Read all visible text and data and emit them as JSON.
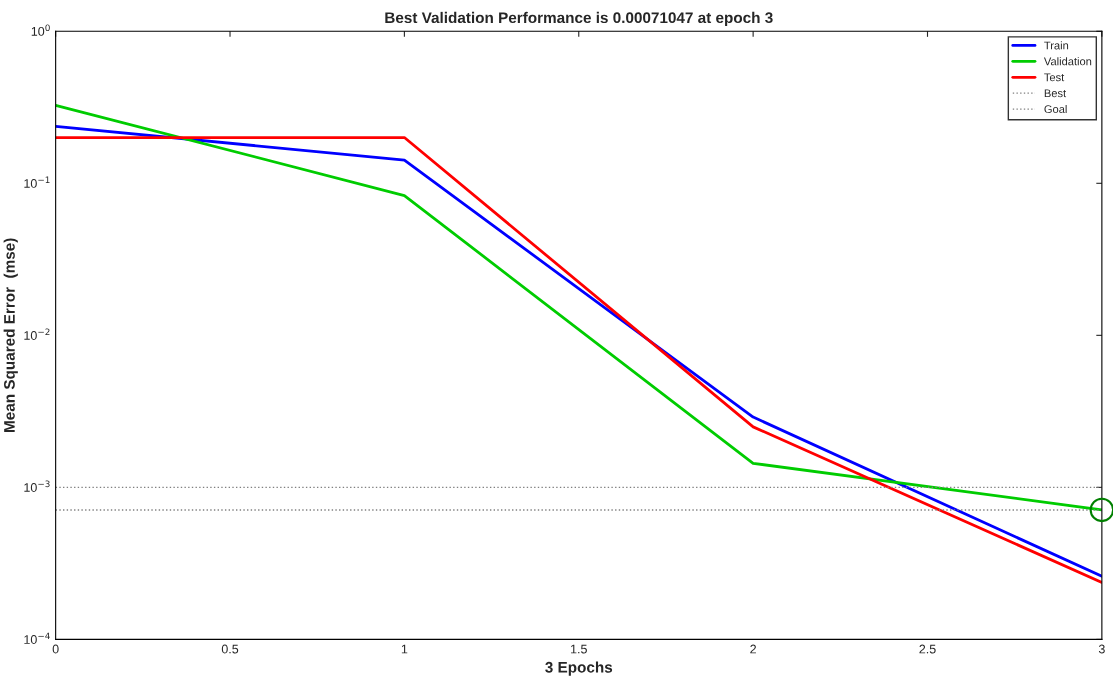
{
  "chart_data": {
    "type": "line",
    "title": "Best Validation Performance is 0.00071047 at epoch 3",
    "xlabel": "3 Epochs",
    "ylabel": "Mean Squared Error  (mse)",
    "log": "y",
    "xlim": [
      0,
      3
    ],
    "xticks": [
      0,
      0.5,
      1,
      1.5,
      2,
      2.5,
      3
    ],
    "ylim": [
      0.0001,
      1
    ],
    "yticks": [
      {
        "value": 0.0001,
        "label": "10$^{−4}$"
      },
      {
        "value": 0.001,
        "label": "10$^{−3}$"
      },
      {
        "value": 0.01,
        "label": "10$^{−2}$"
      },
      {
        "value": 0.1,
        "label": "10$^{−1}$"
      },
      {
        "value": 1,
        "label": "10$^{0}$"
      }
    ],
    "x": [
      0,
      1,
      2,
      3
    ],
    "grid": false,
    "legend": "top right",
    "series": [
      {
        "name": "Train",
        "color": "#0000ff",
        "values": [
          0.237,
          0.142,
          0.0029,
          0.00026
        ]
      },
      {
        "name": "Validation",
        "color": "#00cc00",
        "values": [
          0.326,
          0.083,
          0.00144,
          0.00071047
        ]
      },
      {
        "name": "Test",
        "color": "#ff0000",
        "values": [
          0.2,
          0.2,
          0.0025,
          0.000237
        ]
      },
      {
        "type": "scatter",
        "color": "#008000",
        "marker": "circle",
        "x": [
          3
        ],
        "values": [
          0.00071047
        ]
      }
    ],
    "ref_lines": [
      {
        "axis": "y",
        "value": 0.00071047,
        "label": "Best",
        "color": "#808080",
        "line_style": "dotted"
      },
      {
        "axis": "y",
        "value": 0.001,
        "label": "Goal",
        "color": "#808080",
        "line_style": "dotted"
      }
    ]
  }
}
